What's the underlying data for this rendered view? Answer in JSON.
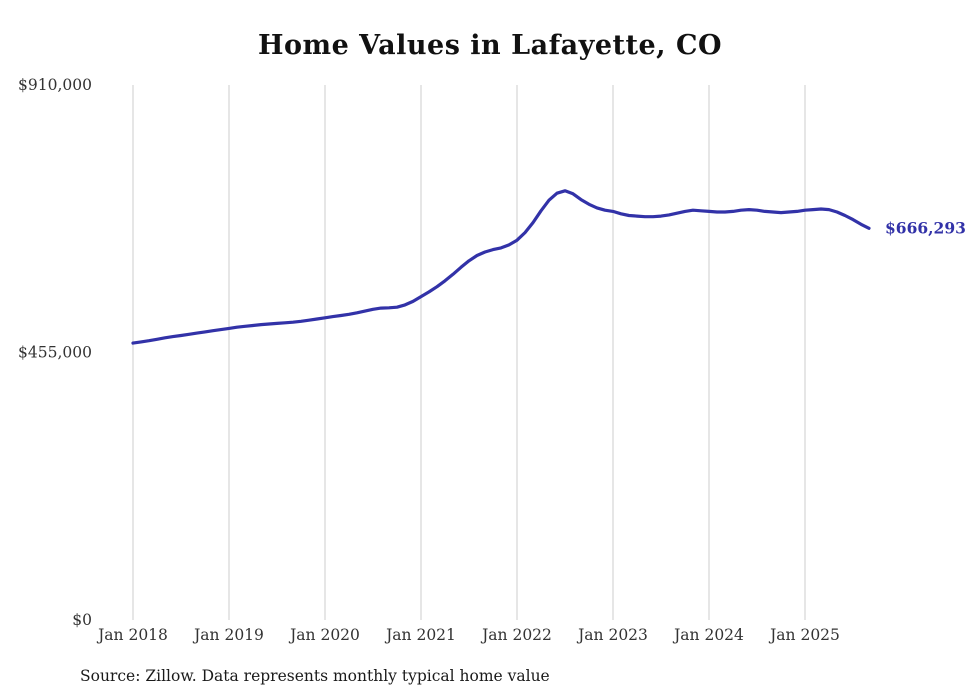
{
  "title": "Home Values in Lafayette, CO",
  "source_note": "Source: Zillow. Data represents monthly typical home value",
  "end_label": "$666,293",
  "colors": {
    "line": "#3232a8",
    "label": "#3232a8",
    "grid": "#cccccc",
    "axis_text": "#333333"
  },
  "chart_data": {
    "type": "line",
    "title": "Home Values in Lafayette, CO",
    "x_start": "Jan 2018",
    "x_frequency": "monthly",
    "x_tick_labels": [
      "Jan 2018",
      "Jan 2019",
      "Jan 2020",
      "Jan 2021",
      "Jan 2022",
      "Jan 2023",
      "Jan 2024",
      "Jan 2025"
    ],
    "y_ticks": [
      {
        "label": "$0",
        "value": 0
      },
      {
        "label": "$455,000",
        "value": 455000
      },
      {
        "label": "$910,000",
        "value": 910000
      }
    ],
    "ylim": [
      0,
      910000
    ],
    "grid": "vertical-only",
    "legend": "none",
    "final_value": 666293,
    "series": [
      {
        "name": "Typical home value",
        "values": [
          471000,
          473000,
          475000,
          477500,
          480000,
          482000,
          484000,
          486000,
          488000,
          490000,
          492000,
          494000,
          496000,
          498000,
          499500,
          501000,
          502500,
          503500,
          504500,
          505500,
          506500,
          508000,
          510000,
          512000,
          514000,
          516000,
          518000,
          520000,
          522500,
          525500,
          528500,
          530500,
          531000,
          532000,
          536000,
          542000,
          550000,
          558000,
          567000,
          577000,
          588000,
          600000,
          611000,
          620000,
          626000,
          630000,
          633000,
          638000,
          646000,
          659000,
          676000,
          696000,
          714000,
          726000,
          730000,
          725000,
          715000,
          707000,
          701000,
          697000,
          695000,
          691000,
          688000,
          687000,
          686000,
          686000,
          687000,
          689000,
          692000,
          695000,
          697000,
          696000,
          695000,
          694000,
          694000,
          695000,
          697000,
          698000,
          697000,
          695000,
          694000,
          693000,
          694000,
          695000,
          697000,
          698000,
          699000,
          698000,
          694000,
          688000,
          681000,
          673000,
          666293
        ]
      }
    ]
  }
}
